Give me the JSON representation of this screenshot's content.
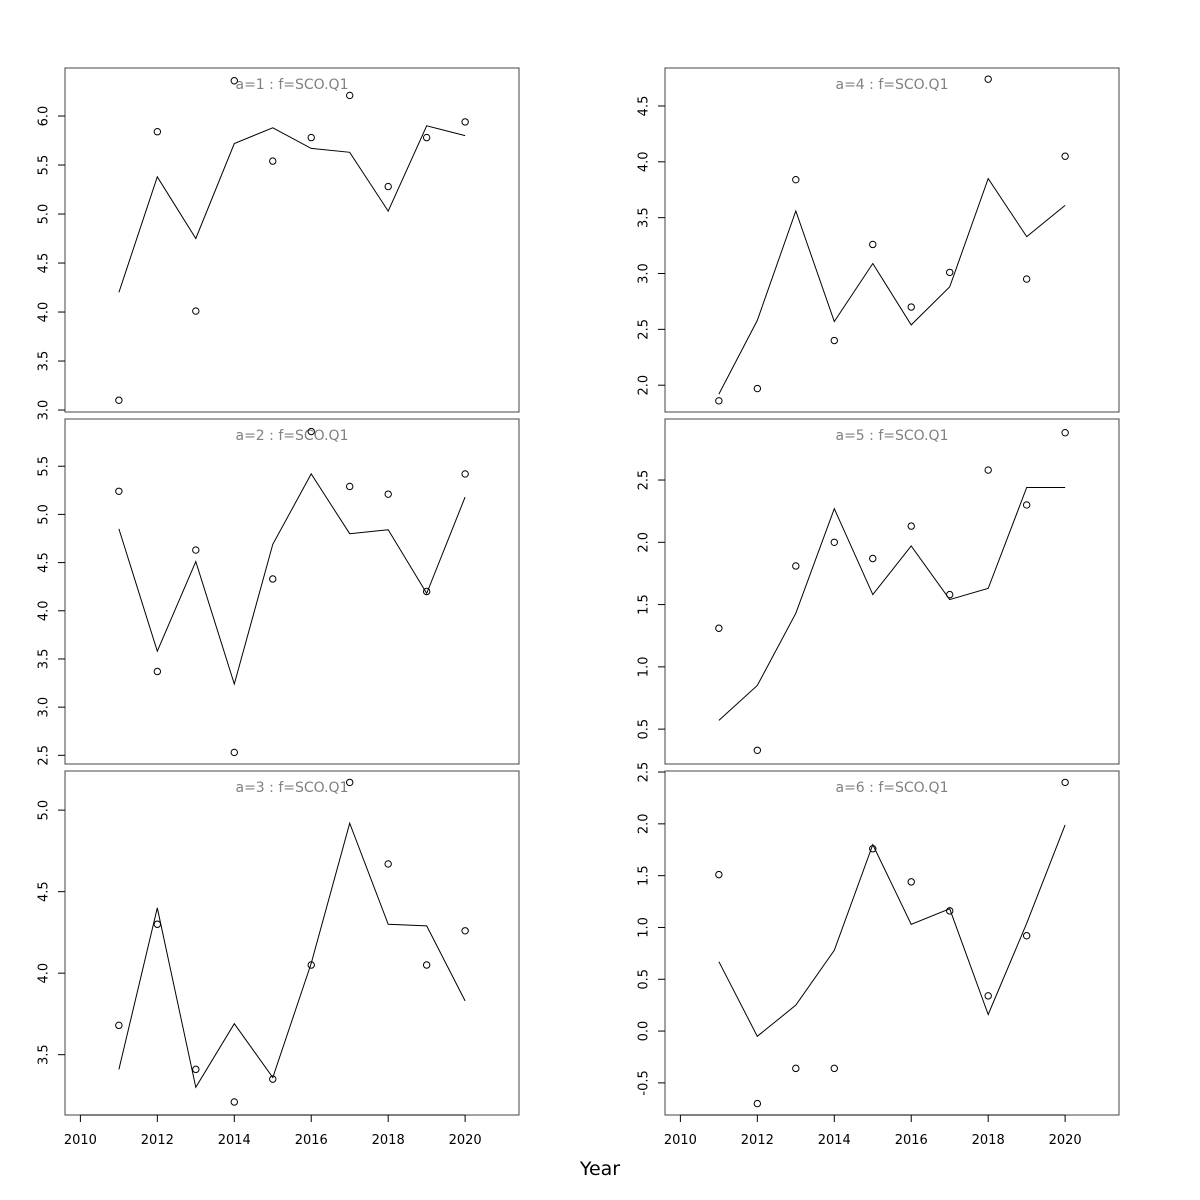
{
  "xlabel": "Year",
  "chart_data": [
    {
      "type": "line",
      "title": "a=1 : f=SCO.Q1",
      "x": [
        2011,
        2012,
        2013,
        2014,
        2015,
        2016,
        2017,
        2018,
        2019,
        2020
      ],
      "series": [
        {
          "style": "line",
          "values": [
            4.2,
            5.38,
            4.75,
            5.72,
            5.88,
            5.67,
            5.63,
            5.03,
            5.9,
            5.8
          ]
        },
        {
          "style": "points",
          "values": [
            3.1,
            5.84,
            4.01,
            6.36,
            5.54,
            5.78,
            6.21,
            5.28,
            5.78,
            5.94
          ]
        }
      ],
      "xlim": [
        2009.6,
        2021.4
      ],
      "ylim": [
        2.98,
        6.49
      ],
      "xticks": [],
      "yticks": [
        3.0,
        3.5,
        4.0,
        4.5,
        5.0,
        5.5,
        6.0
      ],
      "ytick_labels": [
        "3.0",
        "3.5",
        "4.0",
        "4.5",
        "5.0",
        "5.5",
        "6.0"
      ],
      "xtick_labels": []
    },
    {
      "type": "line",
      "title": "a=2 : f=SCO.Q1",
      "x": [
        2011,
        2012,
        2013,
        2014,
        2015,
        2016,
        2017,
        2018,
        2019,
        2020
      ],
      "series": [
        {
          "style": "line",
          "values": [
            4.85,
            3.58,
            4.51,
            3.24,
            4.69,
            5.42,
            4.8,
            4.84,
            4.18,
            5.18
          ]
        },
        {
          "style": "points",
          "values": [
            5.24,
            3.37,
            4.63,
            2.53,
            4.33,
            5.86,
            5.29,
            5.21,
            4.2,
            5.42
          ]
        }
      ],
      "xlim": [
        2009.6,
        2021.4
      ],
      "ylim": [
        2.41,
        5.99
      ],
      "xticks": [],
      "yticks": [
        2.5,
        3.0,
        3.5,
        4.0,
        4.5,
        5.0,
        5.5
      ],
      "ytick_labels": [
        "2.5",
        "3.0",
        "3.5",
        "4.0",
        "4.5",
        "5.0",
        "5.5"
      ],
      "xtick_labels": []
    },
    {
      "type": "line",
      "title": "a=3 : f=SCO.Q1",
      "x": [
        2011,
        2012,
        2013,
        2014,
        2015,
        2016,
        2017,
        2018,
        2019,
        2020
      ],
      "series": [
        {
          "style": "line",
          "values": [
            3.41,
            4.4,
            3.3,
            3.69,
            3.36,
            4.06,
            4.92,
            4.3,
            4.29,
            3.83
          ]
        },
        {
          "style": "points",
          "values": [
            3.68,
            4.3,
            3.41,
            3.21,
            3.35,
            4.05,
            5.17,
            4.67,
            4.05,
            4.26
          ]
        }
      ],
      "xlim": [
        2009.6,
        2021.4
      ],
      "ylim": [
        3.13,
        5.24
      ],
      "xticks": [
        2010,
        2012,
        2014,
        2016,
        2018,
        2020
      ],
      "yticks": [
        3.5,
        4.0,
        4.5,
        5.0
      ],
      "ytick_labels": [
        "3.5",
        "4.0",
        "4.5",
        "5.0"
      ],
      "xtick_labels": [
        "2010",
        "2012",
        "2014",
        "2016",
        "2018",
        "2020"
      ]
    },
    {
      "type": "line",
      "title": "a=4 : f=SCO.Q1",
      "x": [
        2011,
        2012,
        2013,
        2014,
        2015,
        2016,
        2017,
        2018,
        2019,
        2020
      ],
      "series": [
        {
          "style": "line",
          "values": [
            1.92,
            2.58,
            3.56,
            2.57,
            3.09,
            2.54,
            2.88,
            3.85,
            3.33,
            3.61
          ]
        },
        {
          "style": "points",
          "values": [
            1.86,
            1.97,
            3.84,
            2.4,
            3.26,
            2.7,
            3.01,
            4.74,
            2.95,
            4.05
          ]
        }
      ],
      "xlim": [
        2009.6,
        2021.4
      ],
      "ylim": [
        1.76,
        4.84
      ],
      "xticks": [],
      "yticks": [
        2.0,
        2.5,
        3.0,
        3.5,
        4.0,
        4.5
      ],
      "ytick_labels": [
        "2.0",
        "2.5",
        "3.0",
        "3.5",
        "4.0",
        "4.5"
      ],
      "xtick_labels": []
    },
    {
      "type": "line",
      "title": "a=5 : f=SCO.Q1",
      "x": [
        2011,
        2012,
        2013,
        2014,
        2015,
        2016,
        2017,
        2018,
        2019,
        2020
      ],
      "series": [
        {
          "style": "line",
          "values": [
            0.57,
            0.85,
            1.43,
            2.27,
            1.58,
            1.97,
            1.54,
            1.63,
            2.44,
            2.44
          ]
        },
        {
          "style": "points",
          "values": [
            1.31,
            0.33,
            1.81,
            2.0,
            1.87,
            2.13,
            1.58,
            2.58,
            2.3,
            2.88
          ]
        }
      ],
      "xlim": [
        2009.6,
        2021.4
      ],
      "ylim": [
        0.22,
        2.99
      ],
      "xticks": [],
      "yticks": [
        0.5,
        1.0,
        1.5,
        2.0,
        2.5
      ],
      "ytick_labels": [
        "0.5",
        "1.0",
        "1.5",
        "2.0",
        "2.5"
      ],
      "xtick_labels": []
    },
    {
      "type": "line",
      "title": "a=6 : f=SCO.Q1",
      "x": [
        2011,
        2012,
        2013,
        2014,
        2015,
        2016,
        2017,
        2018,
        2019,
        2020
      ],
      "series": [
        {
          "style": "line",
          "values": [
            0.67,
            -0.05,
            0.25,
            0.78,
            1.8,
            1.03,
            1.18,
            0.16,
            1.04,
            1.99
          ]
        },
        {
          "style": "points",
          "values": [
            1.51,
            -0.7,
            -0.36,
            -0.36,
            1.76,
            1.44,
            1.16,
            0.34,
            0.92,
            2.4
          ]
        }
      ],
      "xlim": [
        2009.6,
        2021.4
      ],
      "ylim": [
        -0.81,
        2.51
      ],
      "xticks": [
        2010,
        2012,
        2014,
        2016,
        2018,
        2020
      ],
      "yticks": [
        -0.5,
        0.0,
        0.5,
        1.0,
        1.5,
        2.0,
        2.5
      ],
      "ytick_labels": [
        "-0.5",
        "0.0",
        "0.5",
        "1.0",
        "1.5",
        "2.0",
        "2.5"
      ],
      "xtick_labels": [
        "2010",
        "2012",
        "2014",
        "2016",
        "2018",
        "2020"
      ]
    }
  ]
}
